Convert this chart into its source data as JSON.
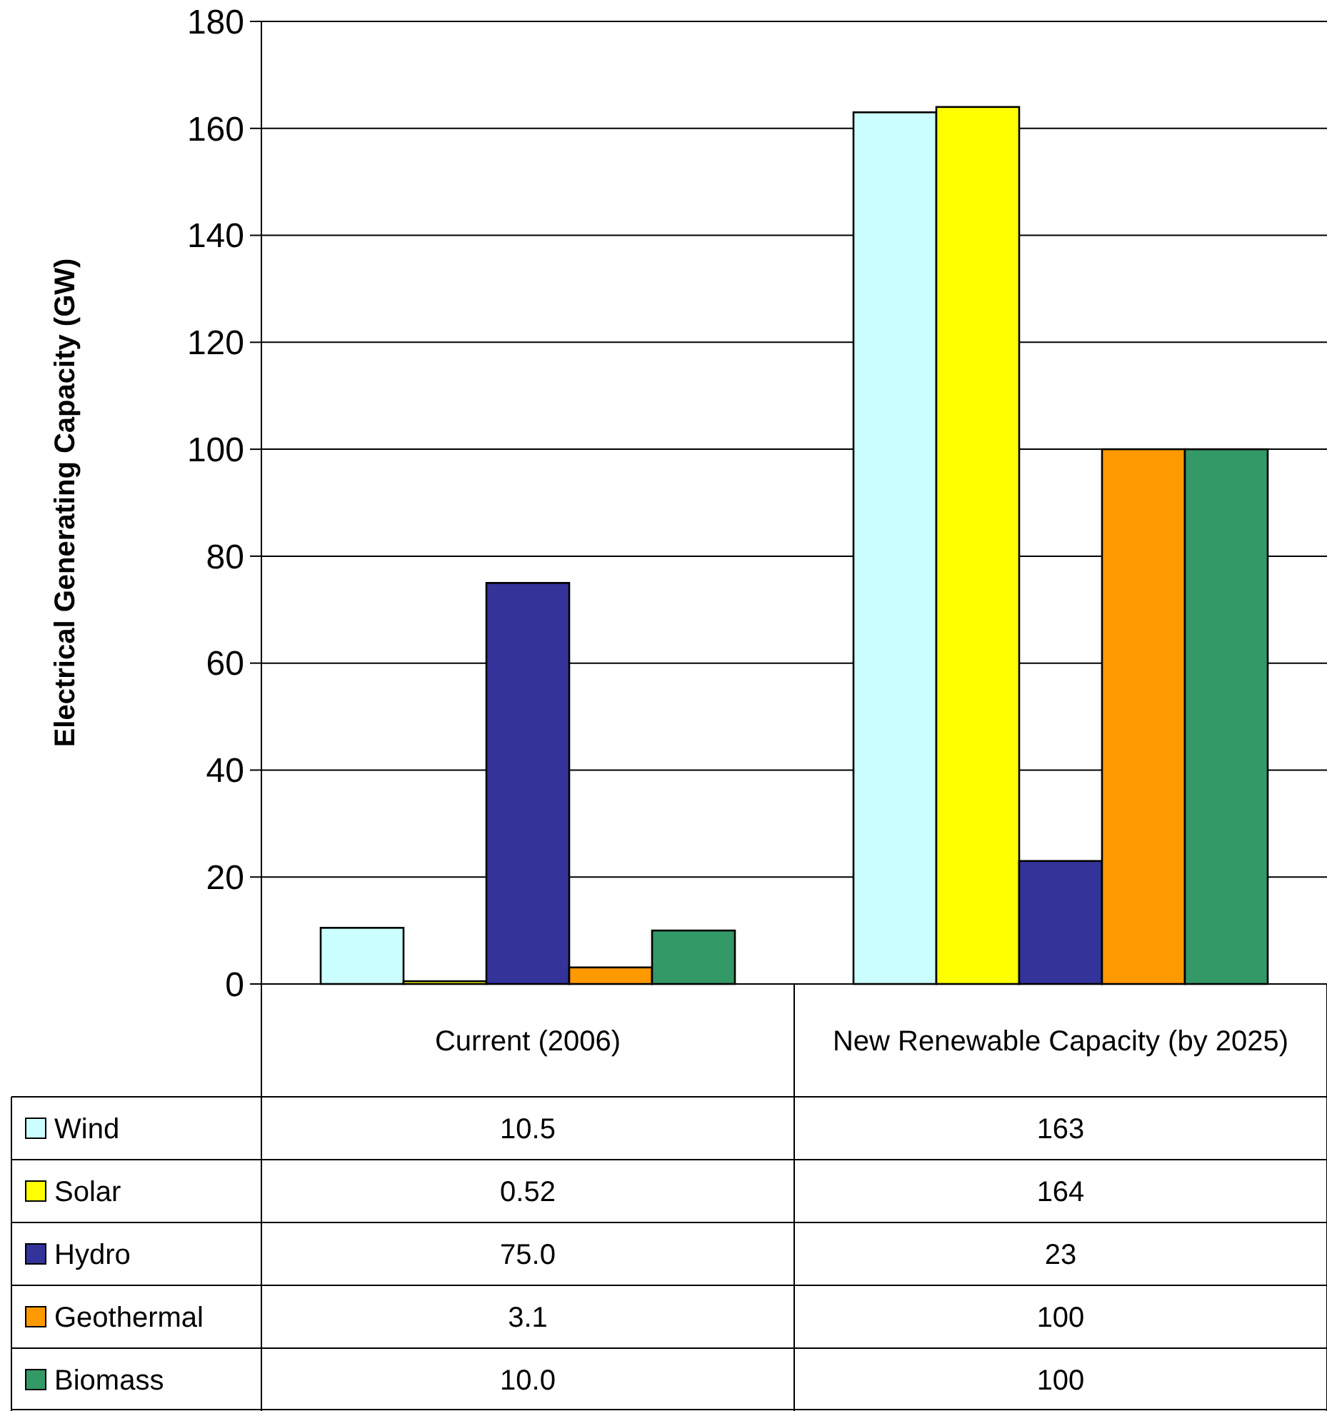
{
  "chart_data": {
    "type": "bar",
    "ylabel": "Electrical Generating Capacity (GW)",
    "categories": [
      "Current (2006)",
      "New Renewable Capacity (by 2025)"
    ],
    "series": [
      {
        "name": "Wind",
        "color": "#ccffff",
        "values": [
          10.5,
          163
        ],
        "value_labels": [
          "10.5",
          "163"
        ]
      },
      {
        "name": "Solar",
        "color": "#ffff00",
        "values": [
          0.52,
          164
        ],
        "value_labels": [
          "0.52",
          "164"
        ]
      },
      {
        "name": "Hydro",
        "color": "#333399",
        "values": [
          75.0,
          23
        ],
        "value_labels": [
          "75.0",
          "23"
        ]
      },
      {
        "name": "Geothermal",
        "color": "#ff9900",
        "values": [
          3.1,
          100
        ],
        "value_labels": [
          "3.1",
          "100"
        ]
      },
      {
        "name": "Biomass",
        "color": "#339966",
        "values": [
          10.0,
          100
        ],
        "value_labels": [
          "10.0",
          "100"
        ]
      }
    ],
    "ylim": [
      0,
      180
    ],
    "yticks": [
      0,
      20,
      40,
      60,
      80,
      100,
      120,
      140,
      160,
      180
    ],
    "grid": "y",
    "legend": "bottom"
  }
}
